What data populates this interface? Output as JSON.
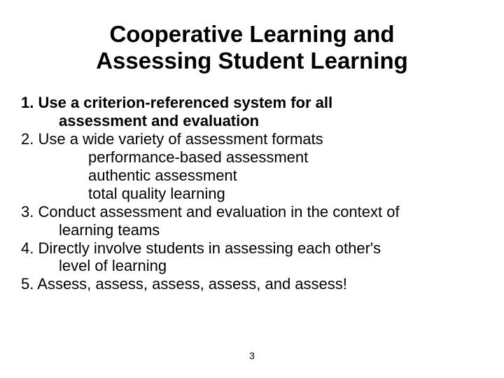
{
  "background_color": "#ffffff",
  "text_color": "#000000",
  "title": {
    "line1": "Cooperative Learning and",
    "line2": "Assessing Student Learning",
    "fontsize": 33,
    "fontweight": "bold"
  },
  "body_fontsize": 22,
  "items": [
    {
      "number": "1.",
      "lines": [
        {
          "text": "Use a criterion-referenced system for all",
          "bold": true,
          "indent": "none"
        },
        {
          "text": "assessment and evaluation",
          "bold": true,
          "indent": "hang"
        }
      ]
    },
    {
      "number": "2.",
      "lines": [
        {
          "text": "Use a wide variety of assessment formats",
          "bold": false,
          "indent": "none"
        },
        {
          "text": "performance-based assessment",
          "bold": false,
          "indent": "sub"
        },
        {
          "text": "authentic assessment",
          "bold": false,
          "indent": "sub"
        },
        {
          "text": "total quality learning",
          "bold": false,
          "indent": "sub"
        }
      ]
    },
    {
      "number": "3.",
      "lines": [
        {
          "text": "Conduct assessment and evaluation in the context of",
          "bold": false,
          "indent": "none"
        },
        {
          "text": "learning teams",
          "bold": false,
          "indent": "hang"
        }
      ]
    },
    {
      "number": "4.",
      "lines": [
        {
          "text": "Directly involve students in assessing each other's",
          "bold": false,
          "indent": "none"
        },
        {
          "text": "level of learning",
          "bold": false,
          "indent": "hang"
        }
      ]
    },
    {
      "number": "5.",
      "lines": [
        {
          "text": "Assess, assess, assess, assess, and assess!",
          "bold": false,
          "indent": "none"
        }
      ]
    }
  ],
  "page_number": "3",
  "page_number_fontsize": 14
}
